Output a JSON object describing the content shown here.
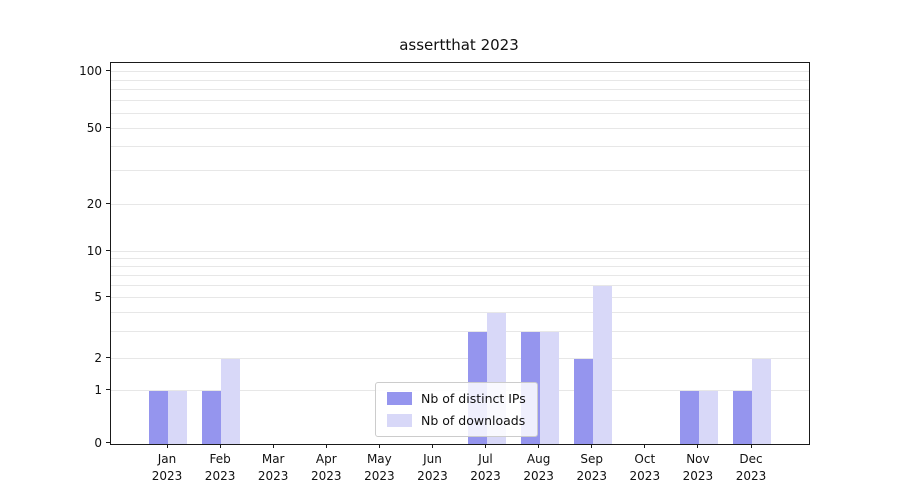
{
  "figure": {
    "title": "assertthat 2023"
  },
  "legend": {
    "items": [
      {
        "label": "Nb of distinct IPs",
        "color": "#9595ee"
      },
      {
        "label": "Nb of downloads",
        "color": "#d8d8f8"
      }
    ]
  },
  "chart_data": {
    "type": "bar",
    "title": "assertthat 2023",
    "categories": [
      "Jan 2023",
      "Feb 2023",
      "Mar 2023",
      "Apr 2023",
      "May 2023",
      "Jun 2023",
      "Jul 2023",
      "Aug 2023",
      "Sep 2023",
      "Oct 2023",
      "Nov 2023",
      "Dec 2023"
    ],
    "series": [
      {
        "name": "Nb of distinct IPs",
        "color": "#9595ee",
        "values": [
          1,
          1,
          0,
          0,
          0,
          0,
          3,
          3,
          2,
          0,
          1,
          1
        ]
      },
      {
        "name": "Nb of downloads",
        "color": "#d8d8f8",
        "values": [
          1,
          2,
          0,
          0,
          0,
          0,
          4,
          3,
          6,
          0,
          1,
          2
        ]
      }
    ],
    "xlabel": "",
    "ylabel": "",
    "yscale": "symlog",
    "yticks": [
      0,
      1,
      2,
      5,
      10,
      20,
      50,
      100
    ],
    "ylim": [
      0,
      110
    ],
    "grid": "horizontal-minor",
    "legend_position": "lower center"
  }
}
